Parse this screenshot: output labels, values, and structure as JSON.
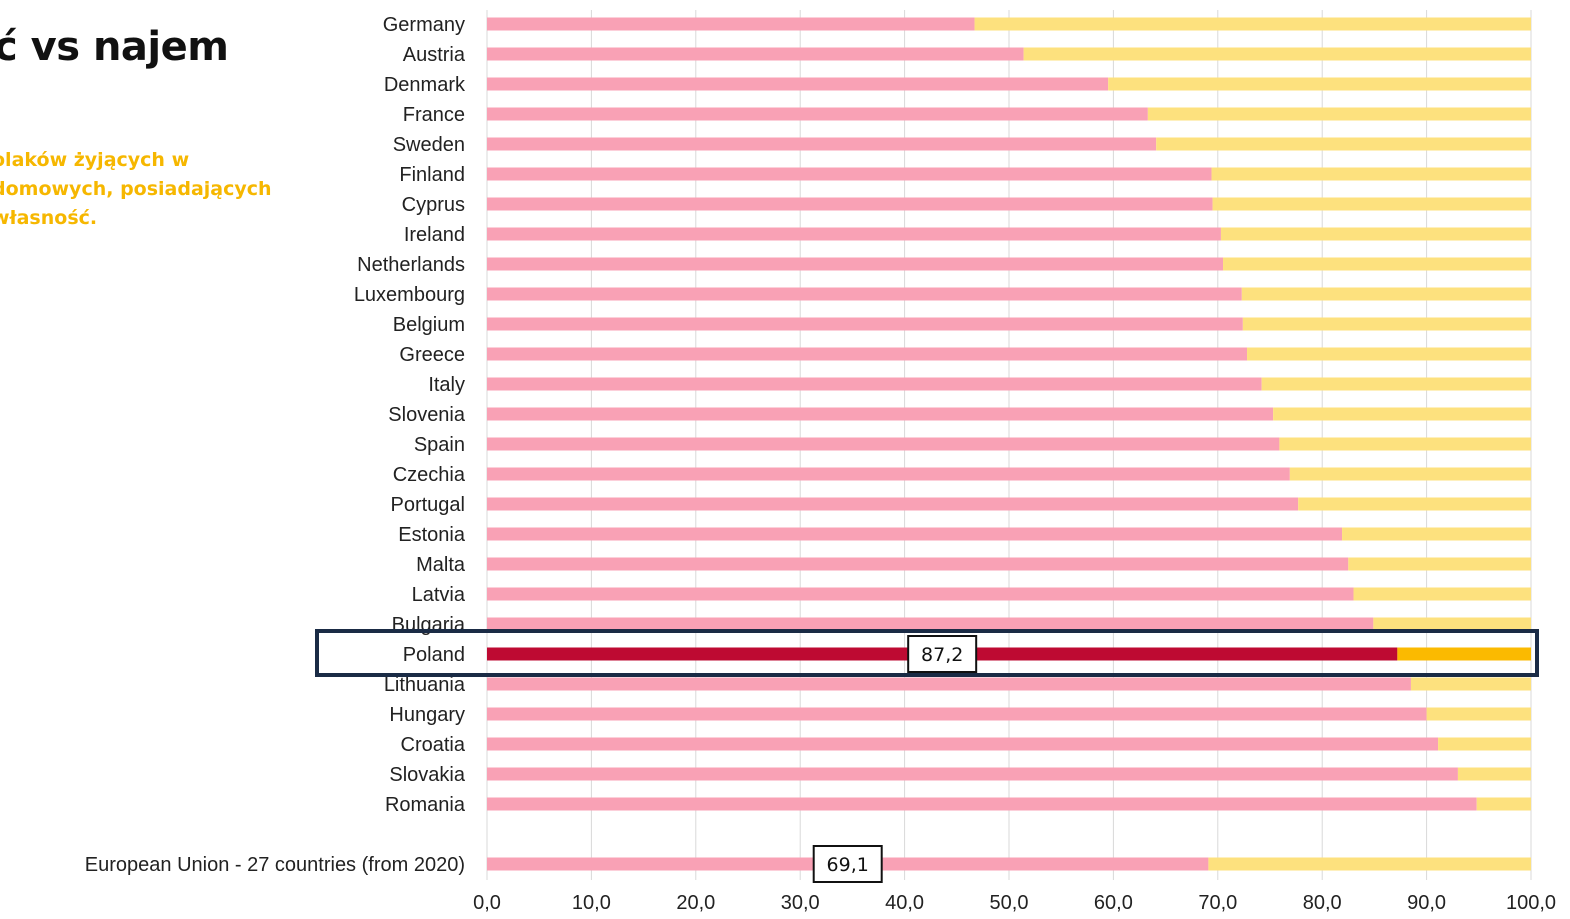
{
  "title": "ć vs najem",
  "subtitle": "olaków żyjących w\n domowych, posiadających\n własność.",
  "colors": {
    "owned": "#f9a1b5",
    "rented": "#fde17e",
    "owned_highlight": "#be0a32",
    "rented_highlight": "#fbba00",
    "highlight_frame": "#1a2b45",
    "subtitle": "#f6b700",
    "grid": "#d9d9d9"
  },
  "chart_data": {
    "type": "bar",
    "orientation": "horizontal",
    "stacked": true,
    "xlim": [
      0,
      100
    ],
    "xticks": [
      "0,0",
      "10,0",
      "20,0",
      "30,0",
      "40,0",
      "50,0",
      "60,0",
      "70,0",
      "80,0",
      "90,0",
      "100,0"
    ],
    "grid": true,
    "legend": "none",
    "categories": [
      "Germany",
      "Austria",
      "Denmark",
      "France",
      "Sweden",
      "Finland",
      "Cyprus",
      "Ireland",
      "Netherlands",
      "Luxembourg",
      "Belgium",
      "Greece",
      "Italy",
      "Slovenia",
      "Spain",
      "Czechia",
      "Portugal",
      "Estonia",
      "Malta",
      "Latvia",
      "Bulgaria",
      "Poland",
      "Lithuania",
      "Hungary",
      "Croatia",
      "Slovakia",
      "Romania",
      "European Union - 27 countries (from 2020)"
    ],
    "values": [
      46.7,
      51.4,
      59.5,
      63.3,
      64.1,
      69.4,
      69.5,
      70.3,
      70.5,
      72.3,
      72.4,
      72.8,
      74.2,
      75.3,
      75.9,
      76.9,
      77.7,
      81.9,
      82.5,
      83.0,
      84.9,
      87.2,
      88.5,
      90.0,
      91.1,
      93.0,
      94.8,
      69.1
    ],
    "highlight": "Poland",
    "data_labels": [
      {
        "category": "Poland",
        "text": "87,2"
      },
      {
        "category": "European Union - 27 countries (from 2020)",
        "text": "69,1"
      }
    ]
  }
}
